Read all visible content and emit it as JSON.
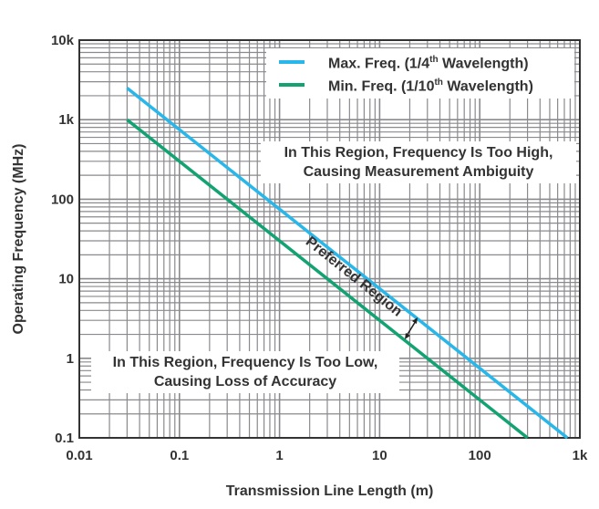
{
  "chart_data": {
    "type": "line",
    "xlabel": "Transmission Line Length (m)",
    "ylabel": "Operating Frequency (MHz)",
    "xscale": "log",
    "yscale": "log",
    "xlim": [
      0.01,
      1000
    ],
    "ylim": [
      0.1,
      10000
    ],
    "xticks": [
      "0.01",
      "0.1",
      "1",
      "10",
      "100",
      "1k"
    ],
    "yticks": [
      "0.1",
      "1",
      "10",
      "100",
      "1k",
      "10k"
    ],
    "grid": true,
    "legend_position": "top-right",
    "series": [
      {
        "name": "Max. Freq. (1/4th Wavelength)",
        "name_parts": [
          "Max. Freq. (1/4",
          "th",
          " Wavelength)"
        ],
        "color": "#29b7ea",
        "x": [
          0.03,
          750
        ],
        "y": [
          2500,
          0.1
        ]
      },
      {
        "name": "Min. Freq. (1/10th Wavelength)",
        "name_parts": [
          "Min. Freq. (1/10",
          "th",
          " Wavelength)"
        ],
        "color": "#13a372",
        "x": [
          0.03,
          300
        ],
        "y": [
          1000,
          0.1
        ]
      }
    ],
    "annotations": {
      "high": [
        "In This Region, Frequency Is Too High,",
        "Causing Measurement Ambiguity"
      ],
      "low": [
        "In This Region, Frequency Is Too Low,",
        "Causing Loss of Accuracy"
      ],
      "preferred": "Preferred Region"
    }
  }
}
